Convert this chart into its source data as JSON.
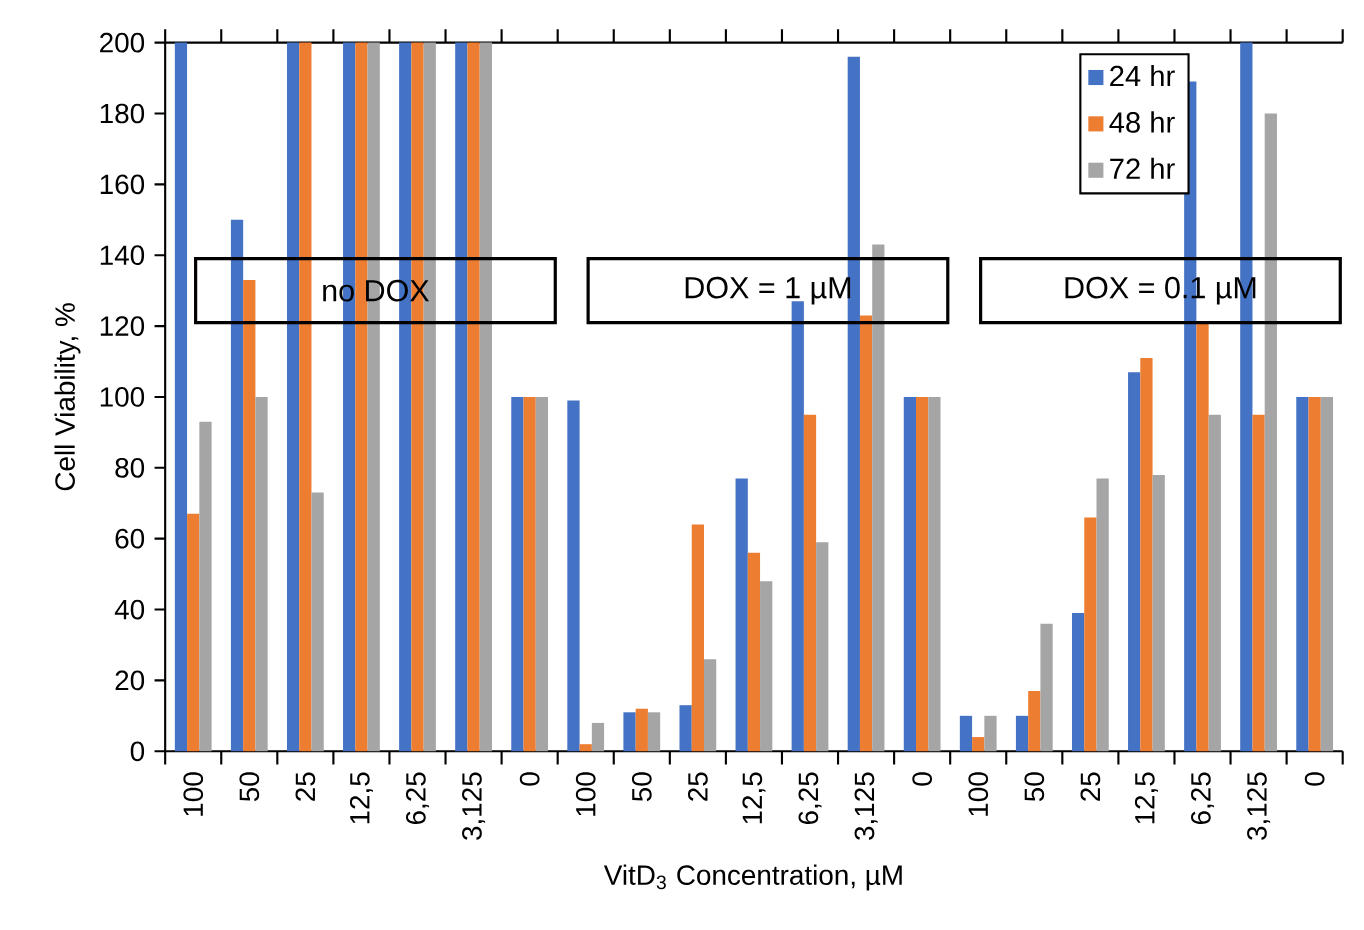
{
  "chart_data": {
    "type": "bar",
    "xlabel": "VitD$_{3}$ Concentration, µM",
    "ylabel": "Cell Viability, %",
    "categories": [
      "100",
      "50",
      "25",
      "12,5",
      "6,25",
      "3,125",
      "0",
      "100",
      "50",
      "25",
      "12,5",
      "6,25",
      "3,125",
      "0",
      "100",
      "50",
      "25",
      "12,5",
      "6,25",
      "3,125",
      "0"
    ],
    "series": [
      {
        "name": "24 hr",
        "color": "#4472c4",
        "values": [
          200,
          150,
          200,
          200,
          200,
          200,
          100,
          99,
          11,
          13,
          77,
          127,
          196,
          100,
          10,
          10,
          39,
          107,
          189,
          200,
          100
        ]
      },
      {
        "name": "48 hr",
        "color": "#ed7d31",
        "values": [
          67,
          133,
          200,
          200,
          200,
          200,
          100,
          2,
          12,
          64,
          56,
          95,
          123,
          100,
          4,
          17,
          66,
          111,
          121,
          95,
          100
        ]
      },
      {
        "name": "72 hr",
        "color": "#a5a5a5",
        "values": [
          93,
          100,
          73,
          200,
          200,
          200,
          100,
          8,
          11,
          26,
          48,
          59,
          143,
          100,
          10,
          36,
          77,
          78,
          95,
          180,
          100
        ]
      }
    ],
    "annotations": [
      "no DOX",
      "DOX = 1 µM",
      "DOX = 0.1 µM"
    ],
    "ylim": [
      0,
      200
    ],
    "yticks": [
      0,
      20,
      40,
      60,
      80,
      100,
      120,
      140,
      160,
      180,
      200
    ],
    "legend": "top right",
    "grid": false
  }
}
